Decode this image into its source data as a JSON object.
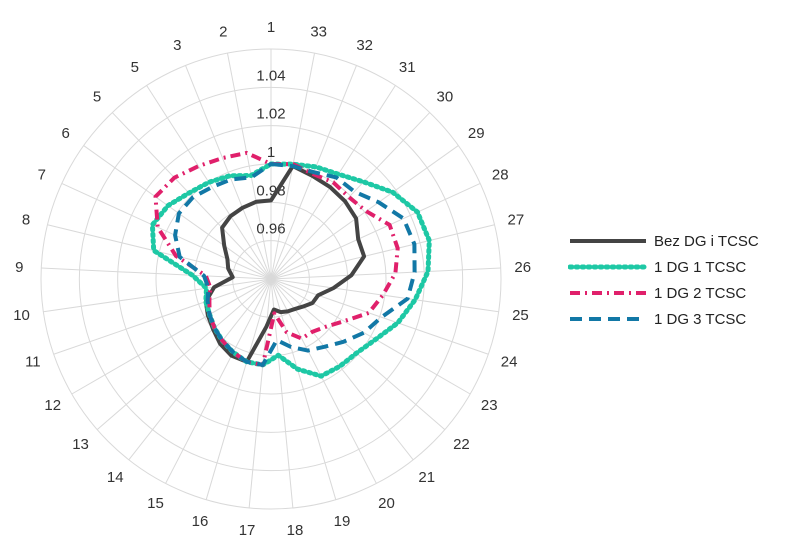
{
  "chart_data": {
    "type": "radar",
    "title": "",
    "categories": [
      "1",
      "33",
      "32",
      "31",
      "30",
      "29",
      "28",
      "27",
      "26",
      "25",
      "24",
      "23",
      "22",
      "21",
      "20",
      "19",
      "18",
      "17",
      "16",
      "15",
      "14",
      "13",
      "12",
      "11",
      "10",
      "9",
      "8",
      "7",
      "6",
      "5",
      "5",
      "3",
      "2"
    ],
    "radial_ticks": [
      "0.96",
      "0.98",
      "1",
      "1.02",
      "1.04"
    ],
    "rlim": [
      0.94,
      1.06
    ],
    "grid": true,
    "legend_position": "right",
    "series": [
      {
        "name": "Bez DG i TCSC",
        "color": "#444444",
        "dash": "solid",
        "values": [
          0.981,
          1.0,
          0.998,
          0.997,
          0.996,
          0.9945,
          0.99,
          0.99,
          0.982,
          0.973,
          0.966,
          0.965,
          0.962,
          0.96,
          0.959,
          0.958,
          0.956,
          0.965,
          0.985,
          0.985,
          0.983,
          0.98,
          0.978,
          0.976,
          0.97,
          0.96,
          0.963,
          0.965,
          0.97,
          0.977,
          0.979,
          0.98,
          0.981
        ]
      },
      {
        "name": "1 DG 1 TCSC",
        "color": "#1ec8a5",
        "dash": "dotted",
        "values": [
          1.0,
          1.001,
          1.003,
          1.005,
          1.01,
          1.018,
          1.024,
          1.025,
          1.022,
          1.016,
          1.01,
          1.003,
          0.999,
          0.998,
          0.997,
          0.989,
          0.98,
          0.985,
          0.985,
          0.983,
          0.981,
          0.979,
          0.977,
          0.976,
          0.974,
          0.981,
          1.003,
          1.008,
          1.006,
          1.002,
          1.0,
          0.998,
          0.995
        ]
      },
      {
        "name": "1 DG 2 TCSC",
        "color": "#e0206b",
        "dash": "dashdot",
        "values": [
          1.0,
          1.001,
          0.999,
          1.0,
          0.999,
          1.001,
          1.008,
          1.008,
          1.005,
          0.999,
          0.994,
          0.984,
          0.978,
          0.975,
          0.975,
          0.969,
          0.958,
          0.985,
          0.985,
          0.983,
          0.981,
          0.979,
          0.977,
          0.974,
          0.972,
          0.974,
          0.991,
          1.005,
          1.014,
          1.013,
          1.01,
          1.008,
          1.007
        ]
      },
      {
        "name": "1 DG 3 TCSC",
        "color": "#1278a6",
        "dash": "dashed",
        "values": [
          1.0,
          1.0,
          1.0,
          1.003,
          1.003,
          1.009,
          1.016,
          1.017,
          1.015,
          1.012,
          1.001,
          0.996,
          0.99,
          0.985,
          0.982,
          0.977,
          0.972,
          0.985,
          0.985,
          0.983,
          0.981,
          0.979,
          0.977,
          0.975,
          0.973,
          0.975,
          0.989,
          0.995,
          0.999,
          0.999,
          0.997,
          0.996,
          0.994
        ]
      }
    ]
  }
}
